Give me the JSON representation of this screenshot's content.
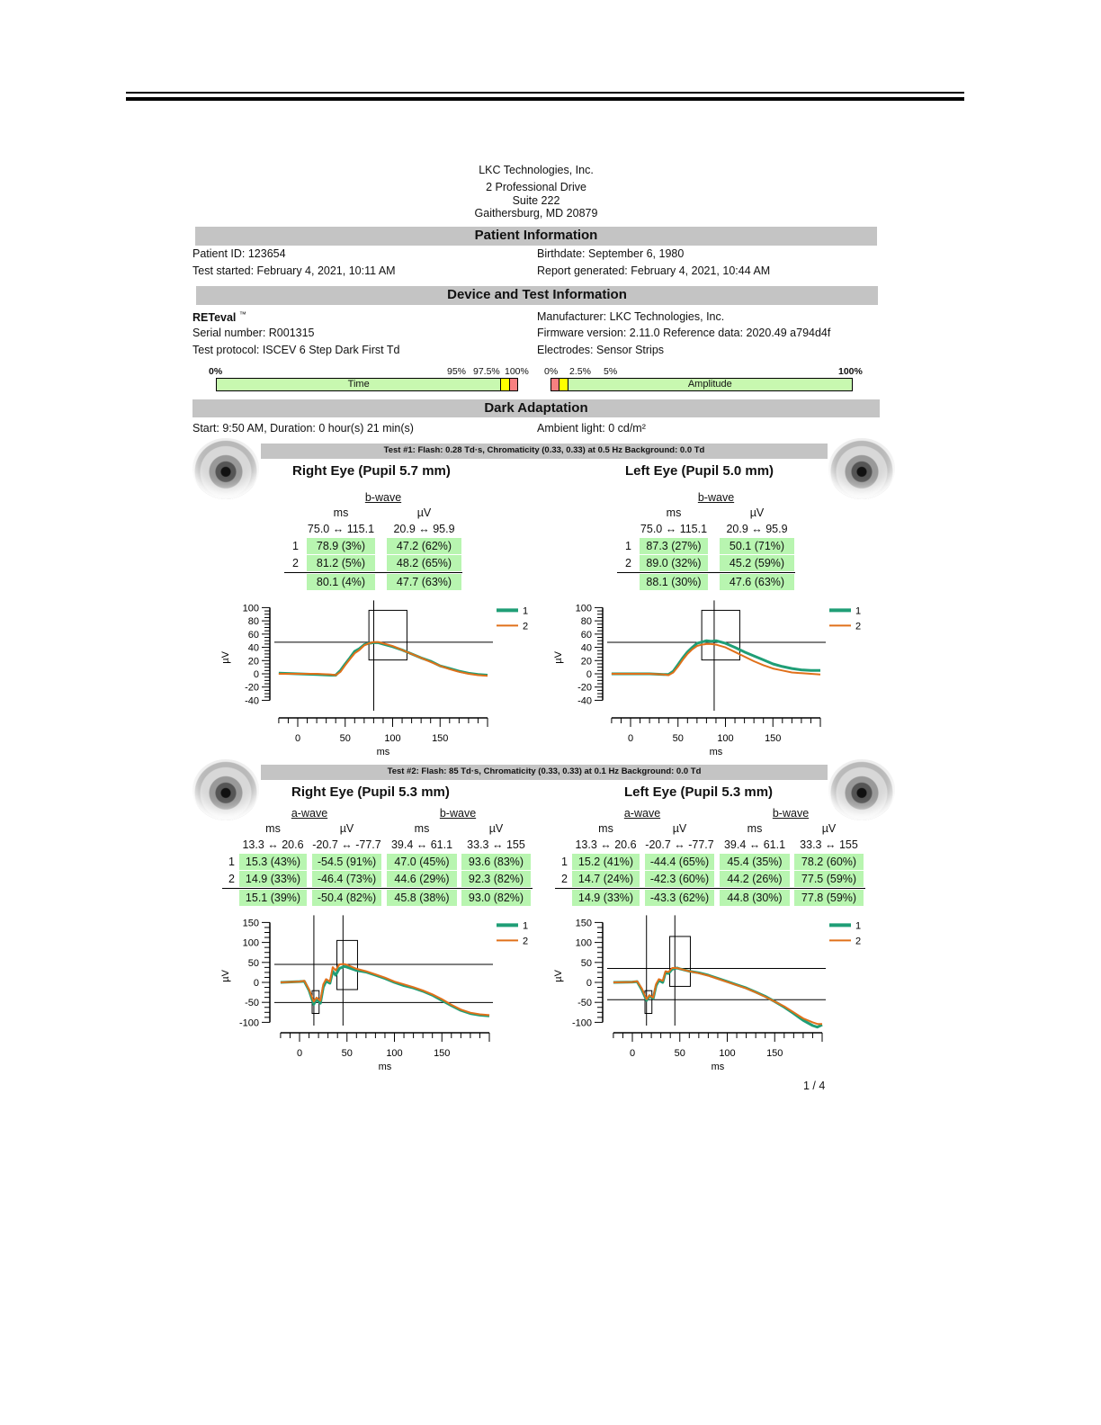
{
  "company": {
    "name": "LKC Technologies, Inc.",
    "address1": "2 Professional Drive",
    "address2": "Suite 222",
    "city": "Gaithersburg, MD 20879"
  },
  "patient": {
    "section_title": "Patient Information",
    "id": "Patient ID: 123654",
    "birthdate": "Birthdate: September 6, 1980",
    "test_started": "Test started: February 4, 2021, 10:11 AM",
    "report_generated": "Report generated: February 4, 2021, 10:44 AM"
  },
  "device": {
    "section_title": "Device and Test Information",
    "name": "RETeval",
    "tm": "™",
    "serial": "Serial number: R001315",
    "protocol": "Test protocol: ISCEV 6 Step Dark First Td",
    "manufacturer": "Manufacturer: LKC Technologies, Inc.",
    "firmware": "Firmware version: 2.11.0 Reference data: 2020.49 a794d4f",
    "electrodes": "Electrodes: Sensor Strips"
  },
  "scales": {
    "time": {
      "label": "Time",
      "ticks": [
        "0%",
        "95%",
        "97.5%",
        "100%"
      ],
      "segments": [
        {
          "pct": 95,
          "color": "#c8f8b0"
        },
        {
          "pct": 2.5,
          "color": "#ffff00"
        },
        {
          "pct": 2.5,
          "color": "#f88080"
        }
      ]
    },
    "amplitude": {
      "label": "Amplitude",
      "ticks": [
        "0%",
        "2.5%",
        "5%",
        "100%"
      ],
      "segments": [
        {
          "pct": 2.5,
          "color": "#f88080"
        },
        {
          "pct": 2.5,
          "color": "#ffff00"
        },
        {
          "pct": 95,
          "color": "#c8f8b0"
        }
      ]
    }
  },
  "dark_adaptation": {
    "section_title": "Dark Adaptation",
    "start": "Start: 9:50 AM, Duration: 0 hour(s) 21 min(s)",
    "ambient": "Ambient light: 0 cd/m²"
  },
  "colors": {
    "trace1": "#1f9e76",
    "trace2": "#e0701a",
    "normal": "#b8f5b0",
    "section_bg": "#c4c4c4"
  },
  "tests": [
    {
      "header": "Test #1:   Flash: 0.28 Td·s, Chromaticity (0.33, 0.33) at 0.5 Hz   Background: 0.0 Td",
      "eyes": [
        {
          "title": "Right Eye (Pupil 5.7 mm)",
          "waves": [
            "b-wave"
          ],
          "units": [
            "ms",
            "µV"
          ],
          "ranges": [
            "75.0 ↔ 115.1",
            "20.9 ↔ 95.9"
          ],
          "rows": [
            {
              "label": "1",
              "values": [
                "78.9 (3%)",
                "47.2 (62%)"
              ]
            },
            {
              "label": "2",
              "values": [
                "81.2 (5%)",
                "48.2 (65%)"
              ]
            }
          ],
          "mean": [
            "80.1 (4%)",
            "47.7 (63%)"
          ]
        },
        {
          "title": "Left Eye (Pupil 5.0 mm)",
          "waves": [
            "b-wave"
          ],
          "units": [
            "ms",
            "µV"
          ],
          "ranges": [
            "75.0 ↔ 115.1",
            "20.9 ↔ 95.9"
          ],
          "rows": [
            {
              "label": "1",
              "values": [
                "87.3 (27%)",
                "50.1 (71%)"
              ]
            },
            {
              "label": "2",
              "values": [
                "89.0 (32%)",
                "45.2 (59%)"
              ]
            }
          ],
          "mean": [
            "88.1 (30%)",
            "47.6 (63%)"
          ]
        }
      ]
    },
    {
      "header": "Test #2:   Flash: 85 Td·s, Chromaticity (0.33, 0.33) at 0.1 Hz   Background: 0.0 Td",
      "eyes": [
        {
          "title": "Right Eye (Pupil 5.3 mm)",
          "waves": [
            "a-wave",
            "b-wave"
          ],
          "units": [
            "ms",
            "µV",
            "ms",
            "µV"
          ],
          "ranges": [
            "13.3 ↔ 20.6",
            "-20.7 ↔ -77.7",
            "39.4 ↔ 61.1",
            "33.3 ↔ 155"
          ],
          "rows": [
            {
              "label": "1",
              "values": [
                "15.3 (43%)",
                "-54.5 (91%)",
                "47.0 (45%)",
                "93.6 (83%)"
              ]
            },
            {
              "label": "2",
              "values": [
                "14.9 (33%)",
                "-46.4 (73%)",
                "44.6 (29%)",
                "92.3 (82%)"
              ]
            }
          ],
          "mean": [
            "15.1 (39%)",
            "-50.4 (82%)",
            "45.8 (38%)",
            "93.0 (82%)"
          ]
        },
        {
          "title": "Left Eye (Pupil 5.3 mm)",
          "waves": [
            "a-wave",
            "b-wave"
          ],
          "units": [
            "ms",
            "µV",
            "ms",
            "µV"
          ],
          "ranges": [
            "13.3 ↔ 20.6",
            "-20.7 ↔ -77.7",
            "39.4 ↔ 61.1",
            "33.3 ↔ 155"
          ],
          "rows": [
            {
              "label": "1",
              "values": [
                "15.2 (41%)",
                "-44.4 (65%)",
                "45.4 (35%)",
                "78.2 (60%)"
              ]
            },
            {
              "label": "2",
              "values": [
                "14.7 (24%)",
                "-42.3 (60%)",
                "44.2 (26%)",
                "77.5 (59%)"
              ]
            }
          ],
          "mean": [
            "14.9 (33%)",
            "-43.3 (62%)",
            "44.8 (30%)",
            "77.8 (59%)"
          ]
        }
      ]
    }
  ],
  "chart_data": [
    {
      "type": "line",
      "test": 1,
      "eye": "right",
      "xlabel": "ms",
      "ylabel": "µV",
      "xlim": [
        -20,
        200
      ],
      "ylim": [
        -40,
        100
      ],
      "xticks": [
        0,
        50,
        100,
        150
      ],
      "yticks": [
        100,
        80,
        60,
        40,
        20,
        0,
        -20,
        -40
      ],
      "legend": [
        "1",
        "2"
      ],
      "legend_position": "right",
      "markers": {
        "v": [
          80.1
        ],
        "h": [
          47.7
        ],
        "boxes": [
          [
            75.0,
            115.1,
            20.9,
            95.9
          ]
        ]
      },
      "series": [
        {
          "name": "1",
          "x": [
            -20,
            0,
            20,
            35,
            40,
            45,
            50,
            55,
            60,
            65,
            70,
            75,
            80,
            85,
            90,
            100,
            110,
            120,
            130,
            140,
            150,
            160,
            170,
            180,
            190,
            200
          ],
          "y": [
            1,
            0,
            -1,
            -2,
            -2,
            5,
            15,
            24,
            34,
            38,
            44,
            46,
            47,
            47,
            45,
            41,
            36,
            30,
            24,
            19,
            12,
            8,
            4,
            1,
            -1,
            -2
          ]
        },
        {
          "name": "2",
          "x": [
            -20,
            0,
            20,
            35,
            40,
            45,
            50,
            55,
            60,
            65,
            70,
            75,
            80,
            85,
            90,
            100,
            110,
            120,
            130,
            140,
            150,
            160,
            170,
            180,
            190,
            200
          ],
          "y": [
            0,
            0,
            0,
            -1,
            -2,
            3,
            13,
            22,
            31,
            36,
            43,
            46,
            48,
            48,
            46,
            42,
            36,
            30,
            24,
            18,
            12,
            7,
            3,
            0,
            -2,
            -3
          ]
        }
      ]
    },
    {
      "type": "line",
      "test": 1,
      "eye": "left",
      "xlabel": "ms",
      "ylabel": "µV",
      "xlim": [
        -20,
        200
      ],
      "ylim": [
        -40,
        100
      ],
      "xticks": [
        0,
        50,
        100,
        150
      ],
      "yticks": [
        100,
        80,
        60,
        40,
        20,
        0,
        -20,
        -40
      ],
      "legend": [
        "1",
        "2"
      ],
      "legend_position": "right",
      "markers": {
        "v": [
          88.1
        ],
        "h": [
          47.6
        ],
        "boxes": [
          [
            75.0,
            115.1,
            20.9,
            95.9
          ]
        ]
      },
      "series": [
        {
          "name": "1",
          "x": [
            -20,
            0,
            20,
            35,
            40,
            45,
            50,
            55,
            60,
            65,
            70,
            75,
            80,
            85,
            90,
            100,
            110,
            120,
            130,
            140,
            150,
            160,
            170,
            180,
            190,
            200
          ],
          "y": [
            0,
            0,
            0,
            -1,
            -1,
            4,
            14,
            24,
            33,
            40,
            46,
            48,
            50,
            49,
            50,
            46,
            40,
            33,
            27,
            21,
            15,
            11,
            8,
            6,
            5,
            5
          ]
        },
        {
          "name": "2",
          "x": [
            -20,
            0,
            20,
            35,
            40,
            45,
            50,
            55,
            60,
            65,
            70,
            75,
            80,
            85,
            90,
            100,
            110,
            120,
            130,
            140,
            150,
            160,
            170,
            180,
            190,
            200
          ],
          "y": [
            0,
            0,
            0,
            -1,
            -2,
            2,
            11,
            21,
            30,
            37,
            42,
            44,
            45,
            45,
            44,
            40,
            33,
            26,
            19,
            13,
            8,
            5,
            2,
            1,
            0,
            -1
          ]
        }
      ]
    },
    {
      "type": "line",
      "test": 2,
      "eye": "right",
      "xlabel": "ms",
      "ylabel": "µV",
      "xlim": [
        -20,
        200
      ],
      "ylim": [
        -100,
        150
      ],
      "xticks": [
        0,
        50,
        100,
        150
      ],
      "yticks": [
        150,
        100,
        50,
        0,
        -50,
        -100
      ],
      "legend": [
        "1",
        "2"
      ],
      "legend_position": "right",
      "markers": {
        "v": [
          15.1,
          45.8
        ],
        "h": [
          -50.4,
          45.0
        ],
        "boxes": [
          [
            13.3,
            20.6,
            -20.7,
            -77.7
          ],
          [
            39.4,
            61.1,
            -18,
            105
          ]
        ]
      },
      "series": [
        {
          "name": "1",
          "x": [
            -20,
            0,
            5,
            10,
            15,
            18,
            22,
            25,
            28,
            32,
            35,
            38,
            42,
            47,
            50,
            60,
            70,
            80,
            90,
            100,
            110,
            120,
            130,
            140,
            150,
            160,
            170,
            180,
            190,
            200
          ],
          "y": [
            0,
            2,
            3,
            -20,
            -55,
            -42,
            -52,
            -12,
            3,
            -2,
            28,
            18,
            35,
            40,
            38,
            30,
            26,
            18,
            10,
            0,
            -8,
            -14,
            -22,
            -32,
            -45,
            -58,
            -70,
            -78,
            -82,
            -84
          ]
        },
        {
          "name": "2",
          "x": [
            -20,
            0,
            5,
            10,
            15,
            18,
            22,
            25,
            28,
            32,
            35,
            38,
            42,
            47,
            50,
            60,
            70,
            80,
            90,
            100,
            110,
            120,
            130,
            140,
            150,
            160,
            170,
            180,
            190,
            200
          ],
          "y": [
            0,
            2,
            4,
            -18,
            -48,
            -38,
            -46,
            -5,
            8,
            2,
            38,
            30,
            45,
            46,
            44,
            34,
            28,
            20,
            12,
            2,
            -5,
            -12,
            -20,
            -30,
            -42,
            -56,
            -68,
            -76,
            -80,
            -82
          ]
        }
      ]
    },
    {
      "type": "line",
      "test": 2,
      "eye": "left",
      "xlabel": "ms",
      "ylabel": "µV",
      "xlim": [
        -20,
        200
      ],
      "ylim": [
        -100,
        150
      ],
      "xticks": [
        0,
        50,
        100,
        150
      ],
      "yticks": [
        150,
        100,
        50,
        0,
        -50,
        -100
      ],
      "legend": [
        "1",
        "2"
      ],
      "legend_position": "right",
      "markers": {
        "v": [
          14.9,
          44.8
        ],
        "h": [
          -43.3,
          35.0
        ],
        "boxes": [
          [
            13.3,
            20.6,
            -20.7,
            -77.7
          ],
          [
            39.4,
            61.1,
            -10,
            115
          ]
        ]
      },
      "series": [
        {
          "name": "1",
          "x": [
            -20,
            0,
            5,
            10,
            15,
            18,
            22,
            25,
            28,
            32,
            35,
            38,
            42,
            47,
            50,
            60,
            70,
            80,
            90,
            100,
            110,
            120,
            130,
            140,
            150,
            160,
            170,
            180,
            190,
            195,
            200
          ],
          "y": [
            0,
            1,
            2,
            -18,
            -45,
            -34,
            -40,
            -8,
            5,
            0,
            25,
            22,
            33,
            36,
            34,
            28,
            24,
            18,
            10,
            2,
            -6,
            -14,
            -24,
            -35,
            -48,
            -62,
            -78,
            -95,
            -108,
            -112,
            -106
          ]
        },
        {
          "name": "2",
          "x": [
            -20,
            0,
            5,
            10,
            15,
            18,
            22,
            25,
            28,
            32,
            35,
            38,
            42,
            47,
            50,
            60,
            70,
            80,
            90,
            100,
            110,
            120,
            130,
            140,
            150,
            160,
            170,
            180,
            190,
            195,
            200
          ],
          "y": [
            0,
            1,
            3,
            -15,
            -42,
            -32,
            -38,
            -4,
            8,
            4,
            28,
            26,
            36,
            36,
            34,
            28,
            23,
            17,
            9,
            1,
            -7,
            -15,
            -25,
            -36,
            -48,
            -60,
            -75,
            -90,
            -100,
            -104,
            -104
          ]
        }
      ]
    }
  ],
  "page": {
    "number": "1 / 4"
  }
}
